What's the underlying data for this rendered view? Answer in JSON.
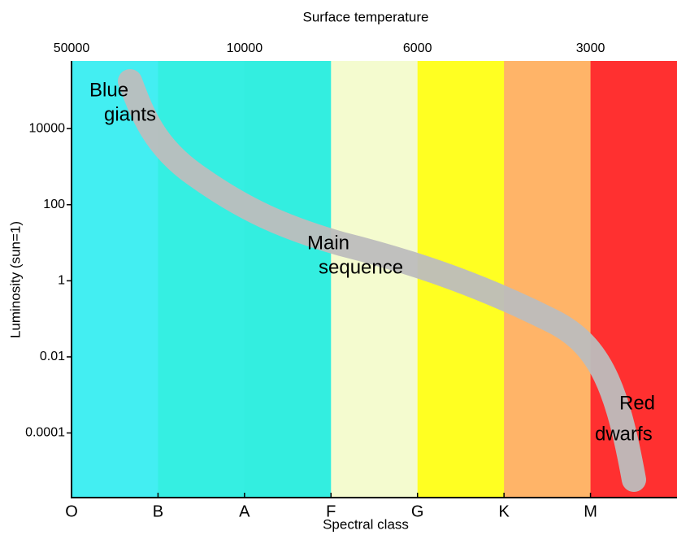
{
  "chart_data": {
    "type": "hr-diagram",
    "title": "Surface temperature",
    "x_label": "Spectral class",
    "y_label": "Luminosity (sun=1)",
    "categories": [
      "O",
      "B",
      "A",
      "F",
      "G",
      "K",
      "M"
    ],
    "band_colors": [
      "#43eef2",
      "#35efe2",
      "#33eee0",
      "#f4fbcf",
      "#ffff22",
      "#ffb468",
      "#ff3030"
    ],
    "top_ticks": [
      {
        "class": "O",
        "value": 50000
      },
      {
        "class": "A",
        "value": 10000
      },
      {
        "class": "G",
        "value": 6000
      },
      {
        "class": "M",
        "value": 3000
      }
    ],
    "log_y": true,
    "ylim": [
      2e-06,
      600000
    ],
    "yticks": [
      10000,
      100,
      1,
      0.01,
      0.0001
    ],
    "annotations": [
      {
        "lines": [
          "Blue",
          "giants"
        ]
      },
      {
        "lines": [
          "Main",
          "sequence"
        ]
      },
      {
        "lines": [
          "Red",
          "dwarfs"
        ]
      }
    ]
  }
}
